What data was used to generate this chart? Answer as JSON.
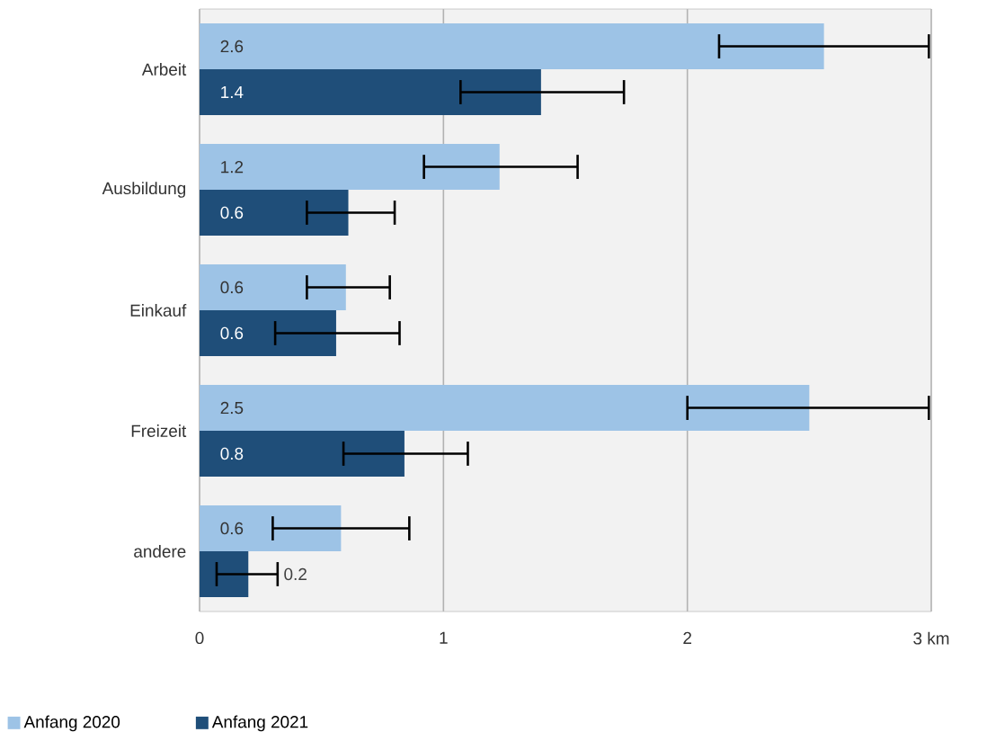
{
  "chart_data": {
    "type": "bar",
    "orientation": "horizontal",
    "categories": [
      "Arbeit",
      "Ausbildung",
      "Einkauf",
      "Freizeit",
      "andere"
    ],
    "series": [
      {
        "name": "Anfang 2020",
        "color": "#9dc3e6",
        "values": [
          2.56,
          1.23,
          0.6,
          2.5,
          0.58
        ],
        "value_labels": [
          "2.6",
          "1.2",
          "0.6",
          "2.5",
          "0.6"
        ],
        "errors": [
          [
            2.13,
            2.99
          ],
          [
            0.92,
            1.55
          ],
          [
            0.44,
            0.78
          ],
          [
            2.0,
            2.99
          ],
          [
            0.3,
            0.86
          ]
        ]
      },
      {
        "name": "Anfang 2021",
        "color": "#1f4e79",
        "values": [
          1.4,
          0.61,
          0.56,
          0.84,
          0.2
        ],
        "value_labels": [
          "1.4",
          "0.6",
          "0.6",
          "0.8",
          "0.2"
        ],
        "errors": [
          [
            1.07,
            1.74
          ],
          [
            0.44,
            0.8
          ],
          [
            0.31,
            0.82
          ],
          [
            0.59,
            1.1
          ],
          [
            0.07,
            0.32
          ]
        ]
      }
    ],
    "xlim": [
      0,
      3
    ],
    "xticks": [
      0,
      1,
      2,
      {
        "value": 3,
        "label": "3 km"
      }
    ],
    "grid": "x",
    "legend": "bottom"
  }
}
